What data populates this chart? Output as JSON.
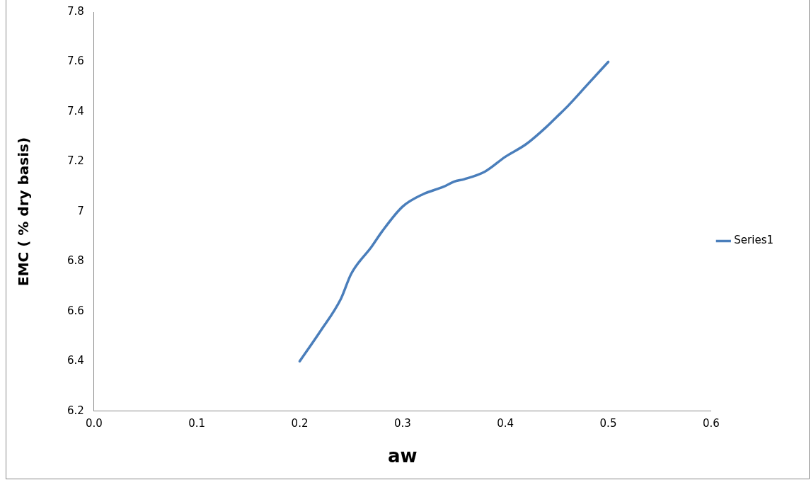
{
  "chart_data": {
    "type": "line",
    "xlabel": "aw",
    "ylabel": "EMC ( % dry basis)",
    "x": [
      0.2,
      0.22,
      0.24,
      0.25,
      0.27,
      0.28,
      0.3,
      0.32,
      0.34,
      0.35,
      0.36,
      0.38,
      0.4,
      0.42,
      0.44,
      0.45,
      0.46,
      0.48,
      0.5
    ],
    "series": [
      {
        "name": "Series1",
        "color": "#4a7ebb",
        "values": [
          6.4,
          6.52,
          6.65,
          6.75,
          6.86,
          6.92,
          7.02,
          7.07,
          7.1,
          7.12,
          7.13,
          7.16,
          7.22,
          7.27,
          7.34,
          7.38,
          7.42,
          7.51,
          7.6
        ]
      }
    ],
    "xlim": [
      0,
      0.6
    ],
    "xticks": [
      {
        "value": 0,
        "label": "0.0"
      },
      0.1,
      0.2,
      0.3,
      0.4,
      0.5,
      0.6
    ],
    "ylim": [
      6.2,
      7.8
    ],
    "yticks": [
      6.2,
      6.4,
      6.6,
      6.8,
      7,
      7.2,
      7.4,
      7.6,
      7.8
    ],
    "grid": false,
    "legend": "right",
    "marker": "none",
    "line_style": "solid"
  }
}
